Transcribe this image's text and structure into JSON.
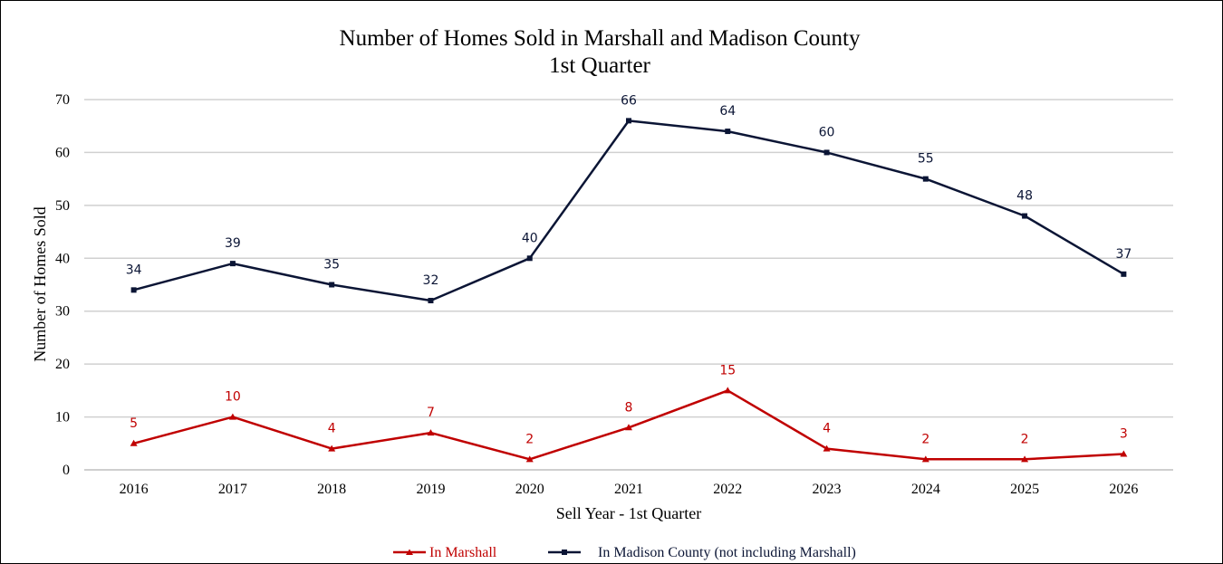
{
  "chart_data": {
    "type": "line",
    "title": "Number of Homes Sold in Marshall and Madison County",
    "subtitle": "1st Quarter",
    "xlabel": "Sell Year - 1st Quarter",
    "ylabel": "Number of Homes Sold",
    "ylim": [
      0,
      70
    ],
    "yticks": [
      "0",
      "10",
      "20",
      "30",
      "40",
      "50",
      "60",
      "70"
    ],
    "categories": [
      "2016",
      "2017",
      "2018",
      "2019",
      "2020",
      "2021",
      "2022",
      "2023",
      "2024",
      "2025",
      "2026"
    ],
    "grid": true,
    "legend_position": "bottom",
    "series": [
      {
        "name": "In Marshall",
        "color": "#C00000",
        "marker": "triangle",
        "values": [
          5,
          10,
          4,
          7,
          2,
          8,
          15,
          4,
          2,
          2,
          3
        ]
      },
      {
        "name": "In Madison County (not including Marshall)",
        "color": "#0B1535",
        "marker": "square",
        "values": [
          34,
          39,
          35,
          32,
          40,
          66,
          64,
          60,
          55,
          48,
          37
        ]
      }
    ]
  }
}
